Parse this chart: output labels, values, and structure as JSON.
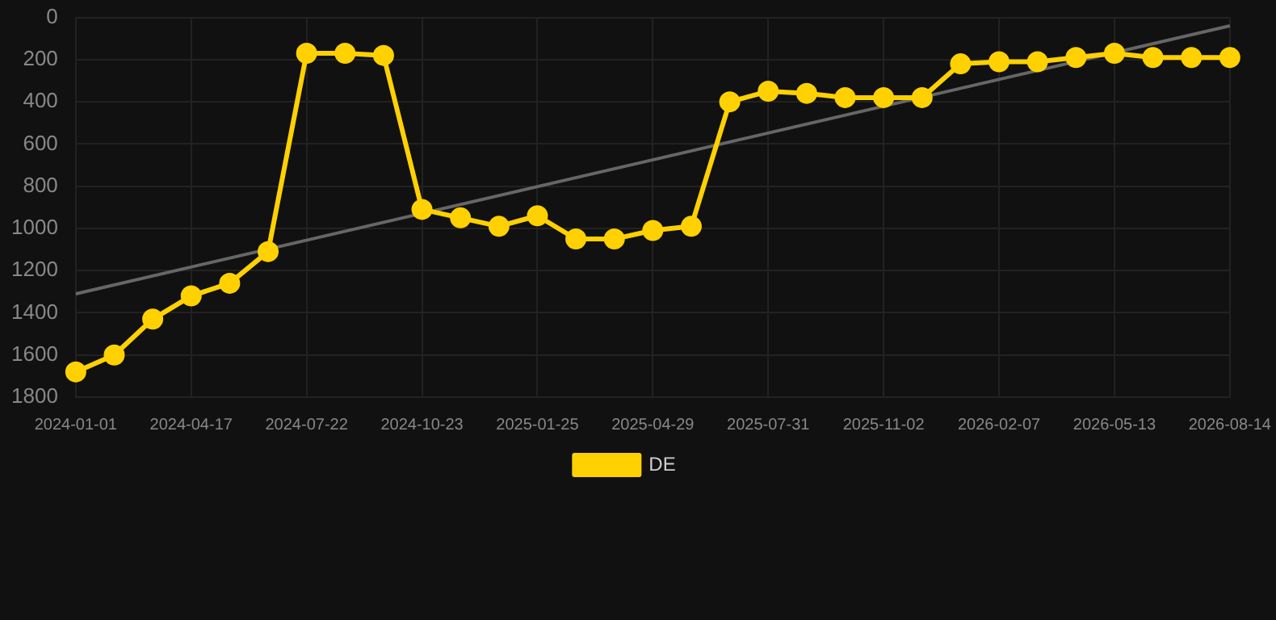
{
  "chart_data": {
    "type": "line",
    "categories": [
      "2024-01-01",
      null,
      null,
      "2024-04-17",
      null,
      null,
      "2024-07-22",
      null,
      null,
      "2024-10-23",
      null,
      null,
      "2025-01-25",
      null,
      null,
      "2025-04-29",
      null,
      null,
      "2025-07-31",
      null,
      null,
      "2025-11-02",
      null,
      null,
      "2026-02-07",
      null,
      null,
      "2026-05-13",
      null,
      null,
      "2026-08-14"
    ],
    "ylim": [
      1800,
      0
    ],
    "yticks": [
      0,
      200,
      400,
      600,
      800,
      1000,
      1200,
      1400,
      1600,
      1800
    ],
    "grid": true,
    "legend": "bottom",
    "series": [
      {
        "name": "DE",
        "color": "#ffd100",
        "marker": "circle",
        "values": [
          1680,
          1600,
          1430,
          1320,
          1260,
          1110,
          170,
          170,
          180,
          910,
          950,
          990,
          940,
          1050,
          1050,
          1010,
          990,
          400,
          350,
          360,
          380,
          380,
          380,
          220,
          210,
          210,
          190,
          170,
          190,
          190,
          190
        ]
      },
      {
        "type": "line",
        "color": "#666666",
        "marker": "none",
        "values": [
          1310,
          null,
          null,
          null,
          null,
          null,
          null,
          null,
          null,
          null,
          null,
          null,
          null,
          null,
          null,
          null,
          null,
          null,
          null,
          null,
          null,
          null,
          null,
          null,
          null,
          null,
          null,
          null,
          null,
          null,
          40
        ]
      }
    ]
  }
}
